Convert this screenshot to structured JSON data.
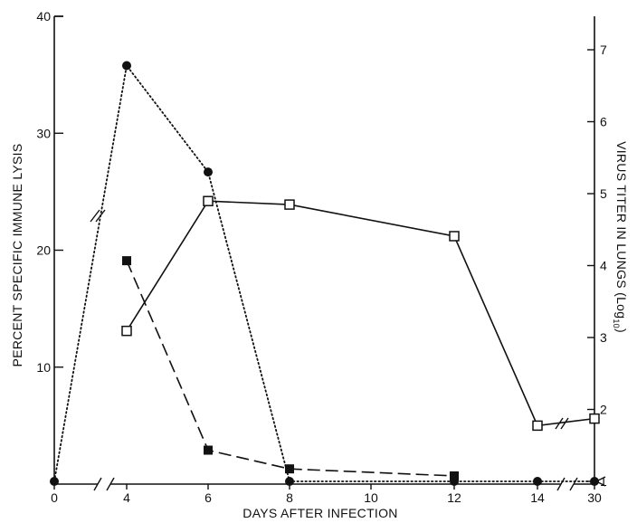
{
  "chart_data": {
    "type": "line",
    "xlabel": "DAYS AFTER INFECTION",
    "ylabel_left": "PERCENT SPECIFIC IMMUNE LYSIS",
    "ylabel_right_main": "VIRUS TITER IN LUNGS (Log",
    "ylabel_right_sub": "10",
    "ylabel_right_end": ")",
    "x_tick_labels": [
      "0",
      "4",
      "6",
      "8",
      "10",
      "12",
      "14",
      "30"
    ],
    "x_ticks": [
      0,
      4,
      6,
      8,
      10,
      12,
      14,
      30
    ],
    "left_tick_labels": [
      "10",
      "20",
      "30",
      "40"
    ],
    "left_ticks": [
      10,
      20,
      30,
      40
    ],
    "ylim_left": [
      0,
      40
    ],
    "right_tick_labels": [
      "1",
      "2",
      "3",
      "4",
      "5",
      "6",
      "7"
    ],
    "right_ticks": [
      1,
      2,
      3,
      4,
      5,
      6,
      7
    ],
    "ylim_right": [
      0.85,
      7.6
    ],
    "axis_breaks": "x between 0 and 4, between 14 and 30; left y below 40",
    "grid": false,
    "legend": "none",
    "series": [
      {
        "axis": "right",
        "marker": "filled-circle",
        "line": "dotted",
        "x": [
          0,
          4,
          6,
          8,
          12,
          14,
          30
        ],
        "y": [
          1.0,
          6.78,
          5.3,
          1.0,
          1.0,
          1.0,
          1.0
        ]
      },
      {
        "axis": "left",
        "marker": "open-square",
        "line": "solid",
        "x": [
          4,
          6,
          8,
          12,
          14,
          30
        ],
        "y": [
          13.1,
          24.2,
          23.9,
          21.2,
          5.0,
          5.6
        ]
      },
      {
        "axis": "left",
        "marker": "filled-square",
        "line": "dashed",
        "x": [
          4,
          6,
          8,
          12
        ],
        "y": [
          19.1,
          2.9,
          1.3,
          0.7
        ]
      }
    ]
  }
}
